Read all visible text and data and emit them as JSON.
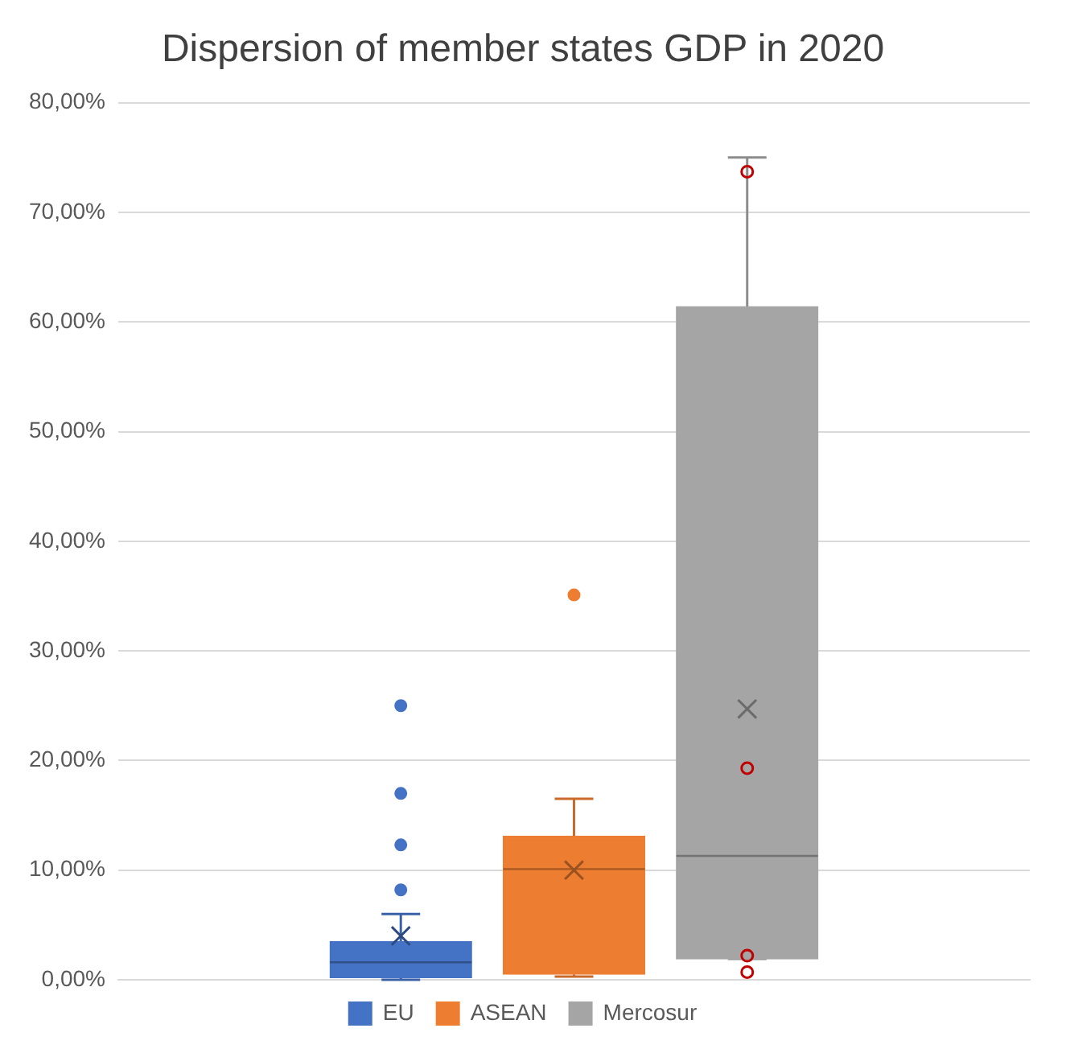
{
  "chart_data": {
    "type": "box",
    "title": "Dispersion of member states GDP in 2020",
    "categories": [
      null
    ],
    "ylim": [
      0,
      80
    ],
    "yticks": [
      {
        "value": 0,
        "label": "0,00%"
      },
      {
        "value": 10,
        "label": "10,00%"
      },
      {
        "value": 20,
        "label": "20,00%"
      },
      {
        "value": 30,
        "label": "30,00%"
      },
      {
        "value": 40,
        "label": "40,00%"
      },
      {
        "value": 50,
        "label": "50,00%"
      },
      {
        "value": 60,
        "label": "60,00%"
      },
      {
        "value": 70,
        "label": "70,00%"
      },
      {
        "value": 80,
        "label": "80,00%"
      }
    ],
    "grid": "y",
    "legend": "bottom",
    "tick_labels": "y",
    "series": [
      {
        "name": "EU",
        "color": "#4472c4",
        "boxes": [
          {
            "low": 0,
            "q1": 0.2,
            "median": 1.6,
            "q3": 3.5,
            "high": 6.0,
            "mean": 4.0,
            "outliers": [
              8.2,
              12.3,
              17.0,
              25.0
            ]
          }
        ]
      },
      {
        "name": "ASEAN",
        "color": "#ed7d31",
        "boxes": [
          {
            "low": 0.3,
            "q1": 0.5,
            "median": 10.1,
            "q3": 13.1,
            "high": 16.5,
            "mean": 10.0,
            "outliers": [
              35.1
            ]
          }
        ]
      },
      {
        "name": "Mercosur",
        "color": "#a5a5a5",
        "boxes": [
          {
            "low": 1.9,
            "q1": 1.9,
            "median": 11.3,
            "q3": 61.4,
            "high": 75.0,
            "mean": 24.7
          }
        ]
      },
      {
        "type": "scatter",
        "color": "#c00000",
        "marker": "circle",
        "x": [
          null,
          null,
          null,
          null
        ],
        "values": [
          73.7,
          19.3,
          2.2,
          0.7
        ]
      }
    ]
  }
}
